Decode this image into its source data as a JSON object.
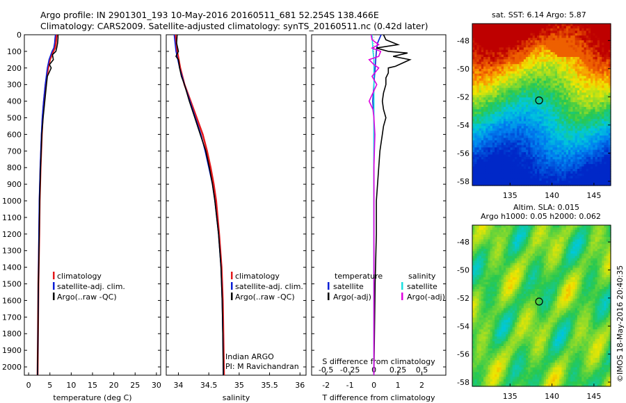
{
  "header": {
    "line1": "Argo profile: IN 2901301_193 10-May-2016 20160511_681 52.254S 138.466E",
    "line2": "Climatology: CARS2009. Satellite-adjusted climatology: synTS_20160511.nc (0.42d later)"
  },
  "colors": {
    "climatology": "#e31a1c",
    "satellite": "#0a1fd6",
    "argo": "#000000",
    "argo_s": "#e000e0",
    "sat_s": "#19e0e0"
  },
  "chart_data": [
    {
      "type": "line",
      "name": "temperature-profile",
      "xlabel": "temperature (deg C)",
      "ylabel": "",
      "xlim": [
        -1,
        31
      ],
      "ylim": [
        2050,
        0
      ],
      "xticks": [
        0,
        5,
        10,
        15,
        20,
        25,
        30
      ],
      "yticks": [
        0,
        100,
        200,
        300,
        400,
        500,
        600,
        700,
        800,
        900,
        1000,
        1100,
        1200,
        1300,
        1400,
        1500,
        1600,
        1700,
        1800,
        1900,
        2000
      ],
      "legend": [
        "climatology",
        "satellite-adj. clim.",
        "Argo(..raw -QC)"
      ],
      "series": [
        {
          "name": "climatology",
          "depth": [
            0,
            20,
            50,
            80,
            100,
            150,
            200,
            300,
            400,
            500,
            600,
            800,
            1000,
            1200,
            1500,
            1800,
            2050
          ],
          "values": [
            6.6,
            6.5,
            6.4,
            6.2,
            5.8,
            5.0,
            4.6,
            4.0,
            3.6,
            3.3,
            3.1,
            2.8,
            2.6,
            2.5,
            2.3,
            2.2,
            2.1
          ]
        },
        {
          "name": "satellite-adj. clim.",
          "depth": [
            0,
            20,
            50,
            80,
            100,
            150,
            200,
            300,
            400,
            500,
            600,
            800,
            1000,
            1200,
            1500,
            1800,
            2050
          ],
          "values": [
            6.3,
            6.2,
            6.1,
            5.9,
            5.5,
            4.8,
            4.4,
            3.9,
            3.5,
            3.2,
            3.0,
            2.7,
            2.5,
            2.4,
            2.3,
            2.2,
            2.1
          ]
        },
        {
          "name": "Argo(..raw -QC)",
          "depth": [
            0,
            20,
            50,
            80,
            100,
            120,
            150,
            180,
            200,
            250,
            300,
            400,
            500,
            600,
            800,
            1000,
            1200,
            1500,
            1800,
            2050
          ],
          "values": [
            6.9,
            6.9,
            6.8,
            6.6,
            6.4,
            5.6,
            5.8,
            4.9,
            5.3,
            4.4,
            4.2,
            3.8,
            3.4,
            3.1,
            2.8,
            2.6,
            2.5,
            2.3,
            2.2,
            2.1
          ]
        }
      ]
    },
    {
      "type": "line",
      "name": "salinity-profile",
      "xlabel": "salinity",
      "ylabel": "",
      "xlim": [
        33.8,
        36.1
      ],
      "ylim": [
        2050,
        0
      ],
      "xticks": [
        34,
        34.5,
        35,
        35.5,
        36
      ],
      "legend": [
        "climatology",
        "satellite-adj. clim.",
        "Argo(..raw -QC)"
      ],
      "annotations": [
        "Indian ARGO",
        "PI: M Ravichandran"
      ],
      "series": [
        {
          "name": "climatology",
          "depth": [
            0,
            100,
            200,
            300,
            400,
            500,
            600,
            700,
            800,
            900,
            1000,
            1200,
            1400,
            1600,
            1800,
            2050
          ],
          "values": [
            33.95,
            33.98,
            34.03,
            34.1,
            34.2,
            34.3,
            34.4,
            34.47,
            34.53,
            34.58,
            34.62,
            34.67,
            34.71,
            34.73,
            34.74,
            34.75
          ]
        },
        {
          "name": "satellite-adj. clim.",
          "depth": [
            0,
            100,
            200,
            300,
            400,
            500,
            600,
            700,
            800,
            900,
            1000,
            1200,
            1400,
            1600,
            1800,
            2050
          ],
          "values": [
            33.93,
            33.96,
            34.02,
            34.1,
            34.19,
            34.28,
            34.37,
            34.44,
            34.5,
            34.56,
            34.6,
            34.66,
            34.7,
            34.72,
            34.73,
            34.74
          ]
        },
        {
          "name": "Argo(..raw -QC)",
          "depth": [
            0,
            50,
            100,
            130,
            150,
            200,
            250,
            300,
            400,
            500,
            600,
            700,
            800,
            900,
            1000,
            1200,
            1400,
            1600,
            1800,
            2050
          ],
          "values": [
            33.98,
            33.97,
            34.0,
            33.96,
            34.0,
            34.02,
            34.05,
            34.1,
            34.18,
            34.27,
            34.36,
            34.45,
            34.51,
            34.56,
            34.6,
            34.66,
            34.7,
            34.72,
            34.73,
            34.74
          ]
        }
      ]
    },
    {
      "type": "line",
      "name": "difference-profile",
      "xlabel": "T difference from climatology",
      "x2label": "S difference from climatology",
      "ylabel": "",
      "xlim": [
        -2.6,
        3.0
      ],
      "x2lim": [
        -0.65,
        0.75
      ],
      "ylim": [
        2050,
        0
      ],
      "xticks": [
        -2,
        -1,
        0,
        1,
        2
      ],
      "x2ticks": [
        -0.5,
        -0.25,
        0,
        0.25,
        0.5
      ],
      "x2ticklabels": [
        "-0.5",
        "-0.25",
        "0",
        "0.25",
        "0.5"
      ],
      "legend_groups": [
        {
          "title": "temperature",
          "items": [
            "satellite",
            "Argo(-adj)"
          ]
        },
        {
          "title": "salinity",
          "items": [
            "satellite",
            "Argo(-adj)"
          ]
        }
      ],
      "series": [
        {
          "name": "temperature satellite",
          "depth": [
            0,
            50,
            100,
            200,
            300,
            400,
            500,
            600,
            800,
            1000,
            1500,
            2050
          ],
          "values": [
            0.3,
            0.15,
            0.1,
            0.05,
            0.0,
            -0.05,
            0.0,
            0.0,
            0.0,
            0.0,
            0.0,
            0.0
          ]
        },
        {
          "name": "temperature Argo(-adj)",
          "depth": [
            0,
            30,
            60,
            80,
            100,
            110,
            130,
            150,
            170,
            190,
            200,
            230,
            260,
            300,
            350,
            400,
            450,
            500,
            550,
            600,
            700,
            800,
            900,
            1000,
            1200,
            1500,
            2050
          ],
          "values": [
            0.4,
            0.5,
            1.0,
            0.1,
            0.6,
            1.4,
            0.8,
            1.5,
            1.2,
            0.9,
            0.6,
            0.6,
            0.5,
            0.5,
            0.4,
            0.35,
            0.4,
            0.5,
            0.4,
            0.35,
            0.25,
            0.2,
            0.15,
            0.1,
            0.1,
            0.05,
            0.0
          ]
        },
        {
          "name": "salinity satellite",
          "depth": [
            0,
            100,
            150,
            200,
            300,
            500,
            1000,
            1500,
            2050
          ],
          "values": [
            -0.02,
            -0.01,
            0.0,
            0.0,
            0.0,
            0.0,
            0.0,
            0.0,
            0.0
          ]
        },
        {
          "name": "salinity Argo(-adj)",
          "depth": [
            0,
            30,
            60,
            80,
            100,
            130,
            150,
            180,
            200,
            250,
            300,
            400,
            450,
            500,
            600,
            800,
            1000,
            1500,
            2050
          ],
          "values": [
            -0.03,
            -0.02,
            0.05,
            -0.02,
            0.07,
            0.05,
            -0.05,
            0.0,
            0.05,
            -0.02,
            0.03,
            -0.05,
            -0.01,
            0.0,
            0.01,
            0.0,
            0.0,
            0.0,
            0.0
          ]
        }
      ]
    },
    {
      "type": "heatmap",
      "name": "sst-map",
      "title": "sat. SST: 6.14 Argo: 5.87",
      "xlim": [
        130.5,
        147
      ],
      "ylim": [
        -58.3,
        -46.8
      ],
      "xticks": [
        135,
        140,
        145
      ],
      "yticks": [
        -48,
        -50,
        -52,
        -54,
        -56,
        -58
      ],
      "marker": {
        "lon": 138.466,
        "lat": -52.254
      }
    },
    {
      "type": "heatmap",
      "name": "sla-map",
      "title": "Altim. SLA: 0.015",
      "subtitle": "Argo h1000: 0.05 h2000: 0.062",
      "xlim": [
        130.5,
        147
      ],
      "ylim": [
        -58.3,
        -46.8
      ],
      "xticks": [
        135,
        140,
        145
      ],
      "yticks": [
        -48,
        -50,
        -52,
        -54,
        -56,
        -58
      ],
      "marker": {
        "lon": 138.466,
        "lat": -52.254
      }
    }
  ],
  "credit": "©IMOS 18-May-2016 20:40:35"
}
